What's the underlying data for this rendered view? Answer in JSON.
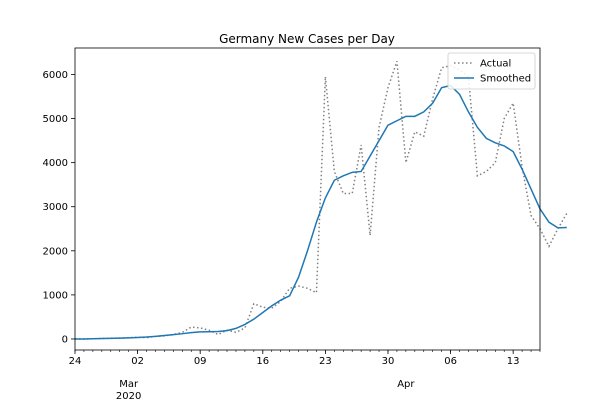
{
  "chart_data": {
    "type": "line",
    "title": "Germany New Cases per Day",
    "xlabel": "",
    "ylabel": "",
    "x_start": "2020-02-24",
    "xlim": [
      "2020-02-24",
      "2020-04-16"
    ],
    "ylim": [
      -250,
      6600
    ],
    "y_ticks": [
      0,
      1000,
      2000,
      3000,
      4000,
      5000,
      6000
    ],
    "x_ticks": [
      {
        "date": "2020-02-24",
        "label": "24"
      },
      {
        "date": "2020-03-02",
        "label": "02"
      },
      {
        "date": "2020-03-09",
        "label": "09"
      },
      {
        "date": "2020-03-16",
        "label": "16"
      },
      {
        "date": "2020-03-23",
        "label": "23"
      },
      {
        "date": "2020-03-30",
        "label": "30"
      },
      {
        "date": "2020-04-06",
        "label": "06"
      },
      {
        "date": "2020-04-13",
        "label": "13"
      }
    ],
    "month_labels": [
      {
        "date": "2020-03-01",
        "label": "Mar",
        "sublabel": "2020"
      },
      {
        "date": "2020-04-01",
        "label": "Apr",
        "sublabel": ""
      }
    ],
    "legend_position": "top-right",
    "grid": false,
    "series": [
      {
        "name": "Actual",
        "style": "dotted",
        "color": "#808080",
        "values": [
          0,
          0,
          5,
          10,
          20,
          20,
          30,
          40,
          30,
          60,
          70,
          100,
          150,
          270,
          250,
          200,
          100,
          200,
          150,
          250,
          800,
          720,
          700,
          850,
          1150,
          1200,
          1150,
          1050,
          5950,
          3800,
          3300,
          3300,
          4400,
          2350,
          4800,
          5700,
          6300,
          4000,
          4700,
          4600,
          5450,
          6150,
          6200,
          6100,
          5950,
          3700,
          3800,
          4000,
          5000,
          5350,
          3900,
          2800,
          2500,
          2100,
          2500,
          2850
        ]
      },
      {
        "name": "Smoothed",
        "style": "solid",
        "color": "#1f77b4",
        "values": [
          0,
          0,
          5,
          10,
          15,
          20,
          25,
          35,
          45,
          60,
          80,
          100,
          120,
          145,
          160,
          165,
          170,
          190,
          240,
          330,
          450,
          600,
          750,
          880,
          980,
          1400,
          2000,
          2650,
          3200,
          3600,
          3700,
          3780,
          3800,
          4150,
          4500,
          4850,
          4950,
          5050,
          5050,
          5150,
          5350,
          5700,
          5750,
          5550,
          5150,
          4800,
          4550,
          4450,
          4380,
          4250,
          3850,
          3400,
          2950,
          2650,
          2520,
          2530
        ]
      }
    ]
  }
}
